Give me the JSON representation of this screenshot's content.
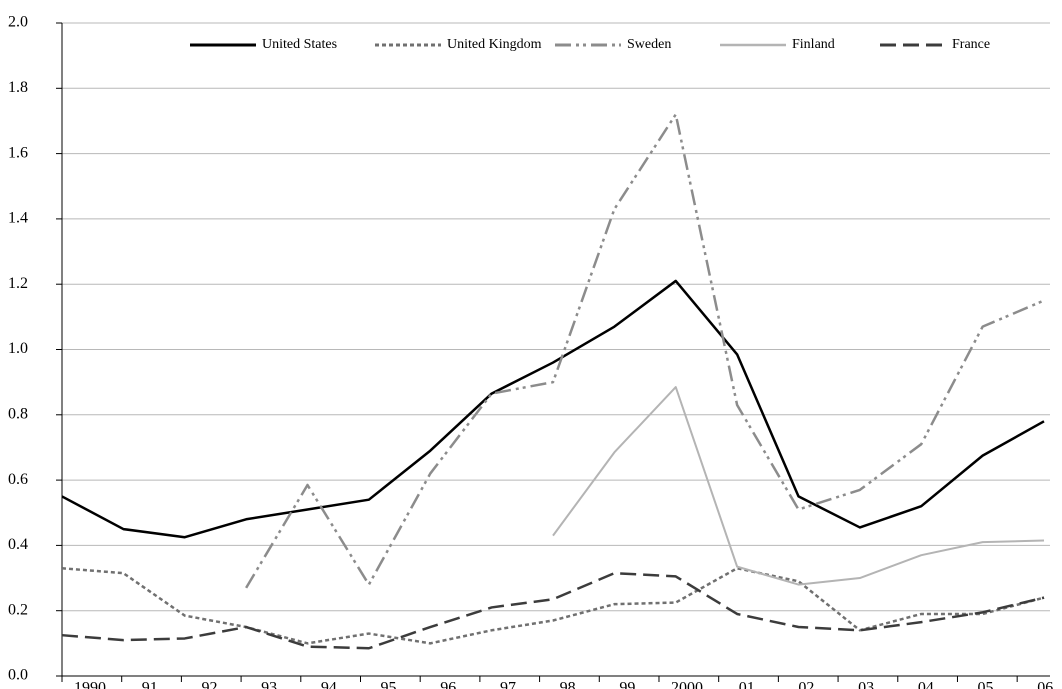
{
  "chart_data": {
    "type": "line",
    "categories": [
      "1990",
      "91",
      "92",
      "93",
      "94",
      "95",
      "96",
      "97",
      "98",
      "99",
      "2000",
      "01",
      "02",
      "03",
      "04",
      "05",
      "06"
    ],
    "series": [
      {
        "name": "United States",
        "color": "#000000",
        "dash": "",
        "width": 2.5,
        "values": [
          0.55,
          0.45,
          0.425,
          0.48,
          0.51,
          0.54,
          0.69,
          0.865,
          0.96,
          1.07,
          1.21,
          0.985,
          0.55,
          0.455,
          0.52,
          0.675,
          0.78
        ]
      },
      {
        "name": "United Kingdom",
        "color": "#707070",
        "dash": "4 3",
        "width": 2.5,
        "values": [
          0.33,
          0.315,
          0.185,
          0.15,
          0.1,
          0.13,
          0.1,
          0.14,
          0.17,
          0.22,
          0.225,
          0.33,
          0.29,
          0.14,
          0.19,
          0.19,
          0.24
        ]
      },
      {
        "name": "Sweden",
        "color": "#8c8c8c",
        "dash": "16 5 3 4 3 5",
        "width": 2.5,
        "values": [
          null,
          null,
          null,
          0.27,
          0.585,
          0.28,
          0.62,
          0.865,
          0.9,
          1.43,
          1.72,
          0.83,
          0.51,
          0.57,
          0.71,
          1.07,
          1.15
        ]
      },
      {
        "name": "Finland",
        "color": "#b4b4b4",
        "dash": "",
        "width": 2,
        "values": [
          null,
          null,
          null,
          null,
          null,
          null,
          null,
          null,
          0.43,
          0.685,
          0.885,
          0.335,
          0.28,
          0.3,
          0.37,
          0.41,
          0.415
        ]
      },
      {
        "name": "France",
        "color": "#3c3c3c",
        "dash": "16 7",
        "width": 2.5,
        "values": [
          0.125,
          0.11,
          0.115,
          0.15,
          0.09,
          0.085,
          0.15,
          0.21,
          0.235,
          0.315,
          0.305,
          0.19,
          0.15,
          0.14,
          0.165,
          0.195,
          0.24
        ]
      }
    ],
    "ylim": [
      0,
      2
    ],
    "yticks": [
      {
        "value": 0,
        "label": "0.0"
      },
      0.2,
      0.4,
      0.6,
      0.8,
      {
        "value": 1,
        "label": "1.0"
      },
      1.2,
      1.4,
      1.6,
      1.8,
      {
        "value": 2,
        "label": "2.0"
      }
    ],
    "grid": true,
    "legend": "top"
  }
}
